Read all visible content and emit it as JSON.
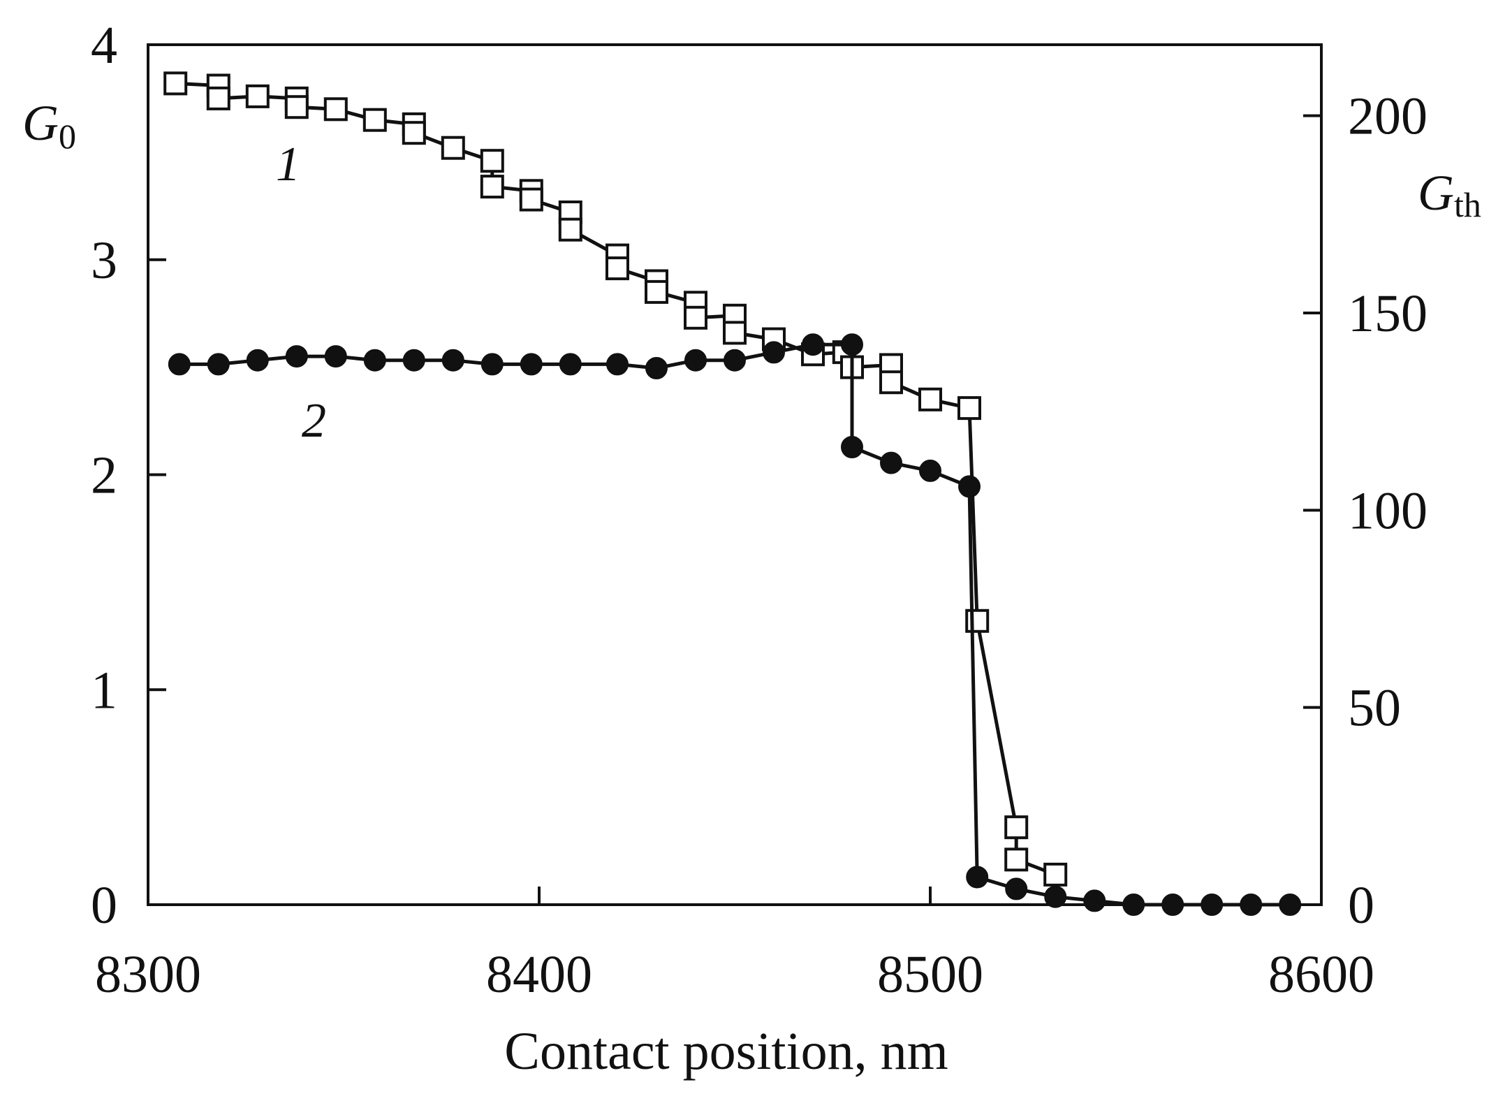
{
  "chart_data": {
    "type": "line",
    "title": "",
    "xlabel": "Contact position, nm",
    "xlim": [
      8300,
      8600
    ],
    "xticks": [
      "8300",
      "8400",
      "8500",
      "8600"
    ],
    "y_left": {
      "label_symbol": "G",
      "label_subscript": "0",
      "ylim": [
        0,
        4
      ],
      "ticks": [
        "0",
        "1",
        "2",
        "3",
        "4"
      ]
    },
    "y_right": {
      "label_symbol": "G",
      "label_subscript": "th",
      "ylim": [
        0,
        218
      ],
      "ticks": [
        "0",
        "50",
        "100",
        "150",
        "200"
      ]
    },
    "grid": false,
    "series": [
      {
        "name": "1",
        "axis": "left",
        "marker": "open-square",
        "x": [
          8307,
          8318,
          8318,
          8328,
          8338,
          8338,
          8348,
          8358,
          8368,
          8368,
          8378,
          8388,
          8388,
          8398,
          8398,
          8408,
          8408,
          8420,
          8420,
          8430,
          8430,
          8440,
          8440,
          8450,
          8450,
          8460,
          8470,
          8478,
          8480,
          8490,
          8490,
          8500,
          8510,
          8512,
          8522,
          8522,
          8532
        ],
        "y": [
          3.82,
          3.81,
          3.75,
          3.76,
          3.75,
          3.71,
          3.7,
          3.65,
          3.63,
          3.59,
          3.52,
          3.46,
          3.34,
          3.32,
          3.28,
          3.22,
          3.14,
          3.02,
          2.96,
          2.9,
          2.85,
          2.8,
          2.73,
          2.74,
          2.66,
          2.63,
          2.56,
          2.57,
          2.5,
          2.51,
          2.43,
          2.35,
          2.31,
          1.32,
          0.36,
          0.21,
          0.14
        ]
      },
      {
        "name": "2",
        "axis": "right",
        "marker": "filled-circle",
        "x": [
          8308,
          8318,
          8328,
          8338,
          8348,
          8358,
          8368,
          8378,
          8388,
          8398,
          8408,
          8420,
          8430,
          8440,
          8450,
          8460,
          8470,
          8480,
          8480,
          8490,
          8500,
          8510,
          8512,
          8522,
          8532,
          8542,
          8552,
          8562,
          8572,
          8582,
          8592
        ],
        "y": [
          137,
          137,
          138,
          139,
          139,
          138,
          138,
          138,
          137,
          137,
          137,
          137,
          136,
          138,
          138,
          140,
          142,
          142,
          116,
          112,
          110,
          106,
          7,
          4,
          2,
          1,
          0,
          0,
          0,
          0,
          0
        ]
      }
    ],
    "annotations": [
      {
        "text": "1",
        "series": "1"
      },
      {
        "text": "2",
        "series": "2"
      }
    ]
  }
}
